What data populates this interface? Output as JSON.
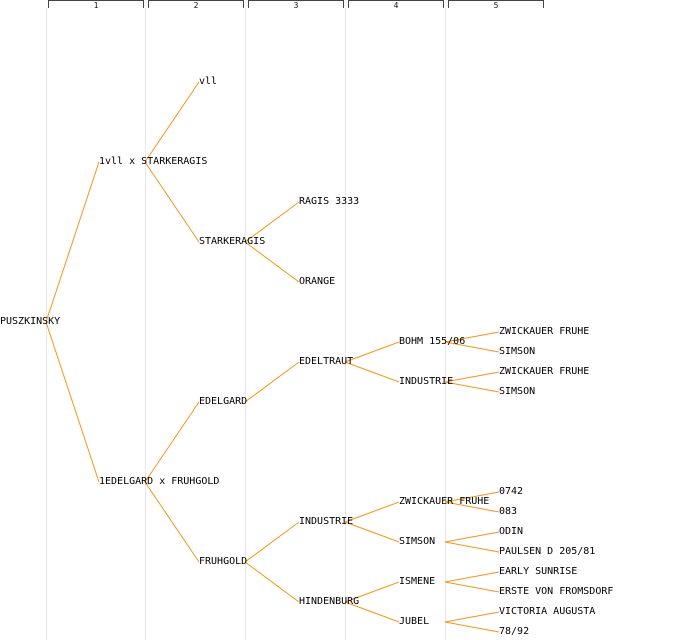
{
  "generation_headers": [
    "1",
    "2",
    "3",
    "4",
    "5"
  ],
  "line_color": "#f7941d",
  "nodes": [
    {
      "id": "n0",
      "label": "PUSZKINSKY"
    },
    {
      "id": "n1",
      "label": "1vll x STARKERAGIS"
    },
    {
      "id": "n2",
      "label": "1EDELGARD x FRUHGOLD"
    },
    {
      "id": "n3",
      "label": "vll"
    },
    {
      "id": "n4",
      "label": "STARKERAGIS"
    },
    {
      "id": "n5",
      "label": "EDELGARD"
    },
    {
      "id": "n6",
      "label": "FRUHGOLD"
    },
    {
      "id": "n7",
      "label": "RAGIS 3333"
    },
    {
      "id": "n8",
      "label": "ORANGE"
    },
    {
      "id": "n9",
      "label": "EDELTRAUT"
    },
    {
      "id": "n10",
      "label": "INDUSTRIE"
    },
    {
      "id": "n11",
      "label": "HINDENBURG"
    },
    {
      "id": "n12",
      "label": "BOHM 155/06"
    },
    {
      "id": "n13",
      "label": "INDUSTRIE"
    },
    {
      "id": "n14",
      "label": "ZWICKAUER FRUHE"
    },
    {
      "id": "n15",
      "label": "SIMSON"
    },
    {
      "id": "n16",
      "label": "ISMENE"
    },
    {
      "id": "n17",
      "label": "JUBEL"
    },
    {
      "id": "n18",
      "label": "ZWICKAUER FRUHE"
    },
    {
      "id": "n19",
      "label": "SIMSON"
    },
    {
      "id": "n20",
      "label": "ZWICKAUER FRUHE"
    },
    {
      "id": "n21",
      "label": "SIMSON"
    },
    {
      "id": "n22",
      "label": "0742"
    },
    {
      "id": "n23",
      "label": "083"
    },
    {
      "id": "n24",
      "label": "ODIN"
    },
    {
      "id": "n25",
      "label": "PAULSEN D 205/81"
    },
    {
      "id": "n26",
      "label": "EARLY SUNRISE"
    },
    {
      "id": "n27",
      "label": "ERSTE VON FROMSDORF"
    },
    {
      "id": "n28",
      "label": "VICTORIA AUGUSTA"
    },
    {
      "id": "n29",
      "label": "78/92"
    }
  ],
  "edges": [
    [
      "n0",
      "n1"
    ],
    [
      "n0",
      "n2"
    ],
    [
      "n1",
      "n3"
    ],
    [
      "n1",
      "n4"
    ],
    [
      "n2",
      "n5"
    ],
    [
      "n2",
      "n6"
    ],
    [
      "n4",
      "n7"
    ],
    [
      "n4",
      "n8"
    ],
    [
      "n5",
      "n9"
    ],
    [
      "n6",
      "n10"
    ],
    [
      "n6",
      "n11"
    ],
    [
      "n9",
      "n12"
    ],
    [
      "n9",
      "n13"
    ],
    [
      "n10",
      "n14"
    ],
    [
      "n10",
      "n15"
    ],
    [
      "n11",
      "n16"
    ],
    [
      "n11",
      "n17"
    ],
    [
      "n12",
      "n18"
    ],
    [
      "n12",
      "n19"
    ],
    [
      "n13",
      "n20"
    ],
    [
      "n13",
      "n21"
    ],
    [
      "n14",
      "n22"
    ],
    [
      "n14",
      "n23"
    ],
    [
      "n15",
      "n24"
    ],
    [
      "n15",
      "n25"
    ],
    [
      "n16",
      "n26"
    ],
    [
      "n16",
      "n27"
    ],
    [
      "n17",
      "n28"
    ],
    [
      "n17",
      "n29"
    ]
  ]
}
